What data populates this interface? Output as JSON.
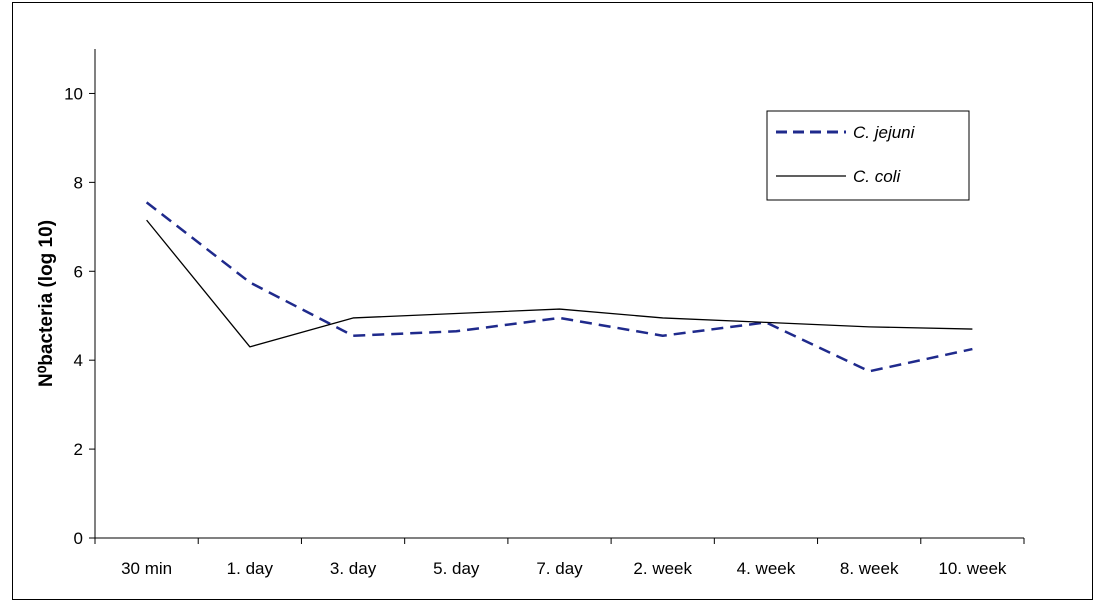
{
  "chart_data": {
    "type": "line",
    "categories": [
      "30 min",
      "1. day",
      "3. day",
      "5. day",
      "7. day",
      "2. week",
      "4. week",
      "8. week",
      "10. week"
    ],
    "ylabel": "N⁰bacteria (log 10)",
    "xlabel": "",
    "title": "",
    "ylim": [
      0,
      11
    ],
    "yticks": [
      0,
      2,
      4,
      6,
      8,
      10
    ],
    "grid": false,
    "legend_position": "top-right",
    "series": [
      {
        "name": "C. jejuni",
        "values": [
          7.55,
          5.75,
          4.55,
          4.65,
          4.95,
          4.55,
          4.85,
          3.75,
          4.25
        ],
        "color": "#1f2a8c",
        "style": "dashed"
      },
      {
        "name": "C. coli",
        "values": [
          7.15,
          4.3,
          4.95,
          5.05,
          5.15,
          4.95,
          4.85,
          4.75,
          4.7
        ],
        "color": "#000000",
        "style": "solid"
      }
    ]
  }
}
